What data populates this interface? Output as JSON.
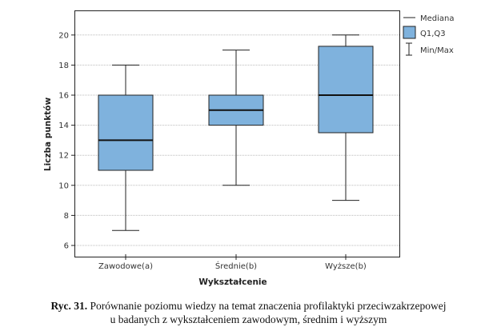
{
  "chart_data": {
    "type": "boxplot",
    "xlabel": "Wykształcenie",
    "ylabel": "Liczba punktów",
    "ylim": [
      5.3,
      21.6
    ],
    "yticks": [
      6,
      8,
      10,
      12,
      14,
      16,
      18,
      20
    ],
    "grid": "horizontal dotted",
    "legend_placement": "right-top",
    "legend": [
      "Mediana",
      "Q1,Q3",
      "Min/Max"
    ],
    "box_color": "#7fb2dd",
    "categories": [
      "Zawodowe(a)",
      "Średnie(b)",
      "Wyższe(b)"
    ],
    "series": [
      {
        "min": 7,
        "q1": 11,
        "median": 13,
        "q3": 16,
        "max": 18
      },
      {
        "min": 10,
        "q1": 14,
        "median": 15,
        "q3": 16,
        "max": 19
      },
      {
        "min": 9,
        "q1": 13.5,
        "median": 16,
        "q3": 19.25,
        "max": 20
      }
    ]
  },
  "caption": {
    "label": "Ryc. 31.",
    "text": " Porównanie poziomu wiedzy na temat znaczenia profilaktyki przeciwzakrzepowej",
    "line2": "u badanych z wykształceniem zawodowym, średnim i wyższym"
  }
}
